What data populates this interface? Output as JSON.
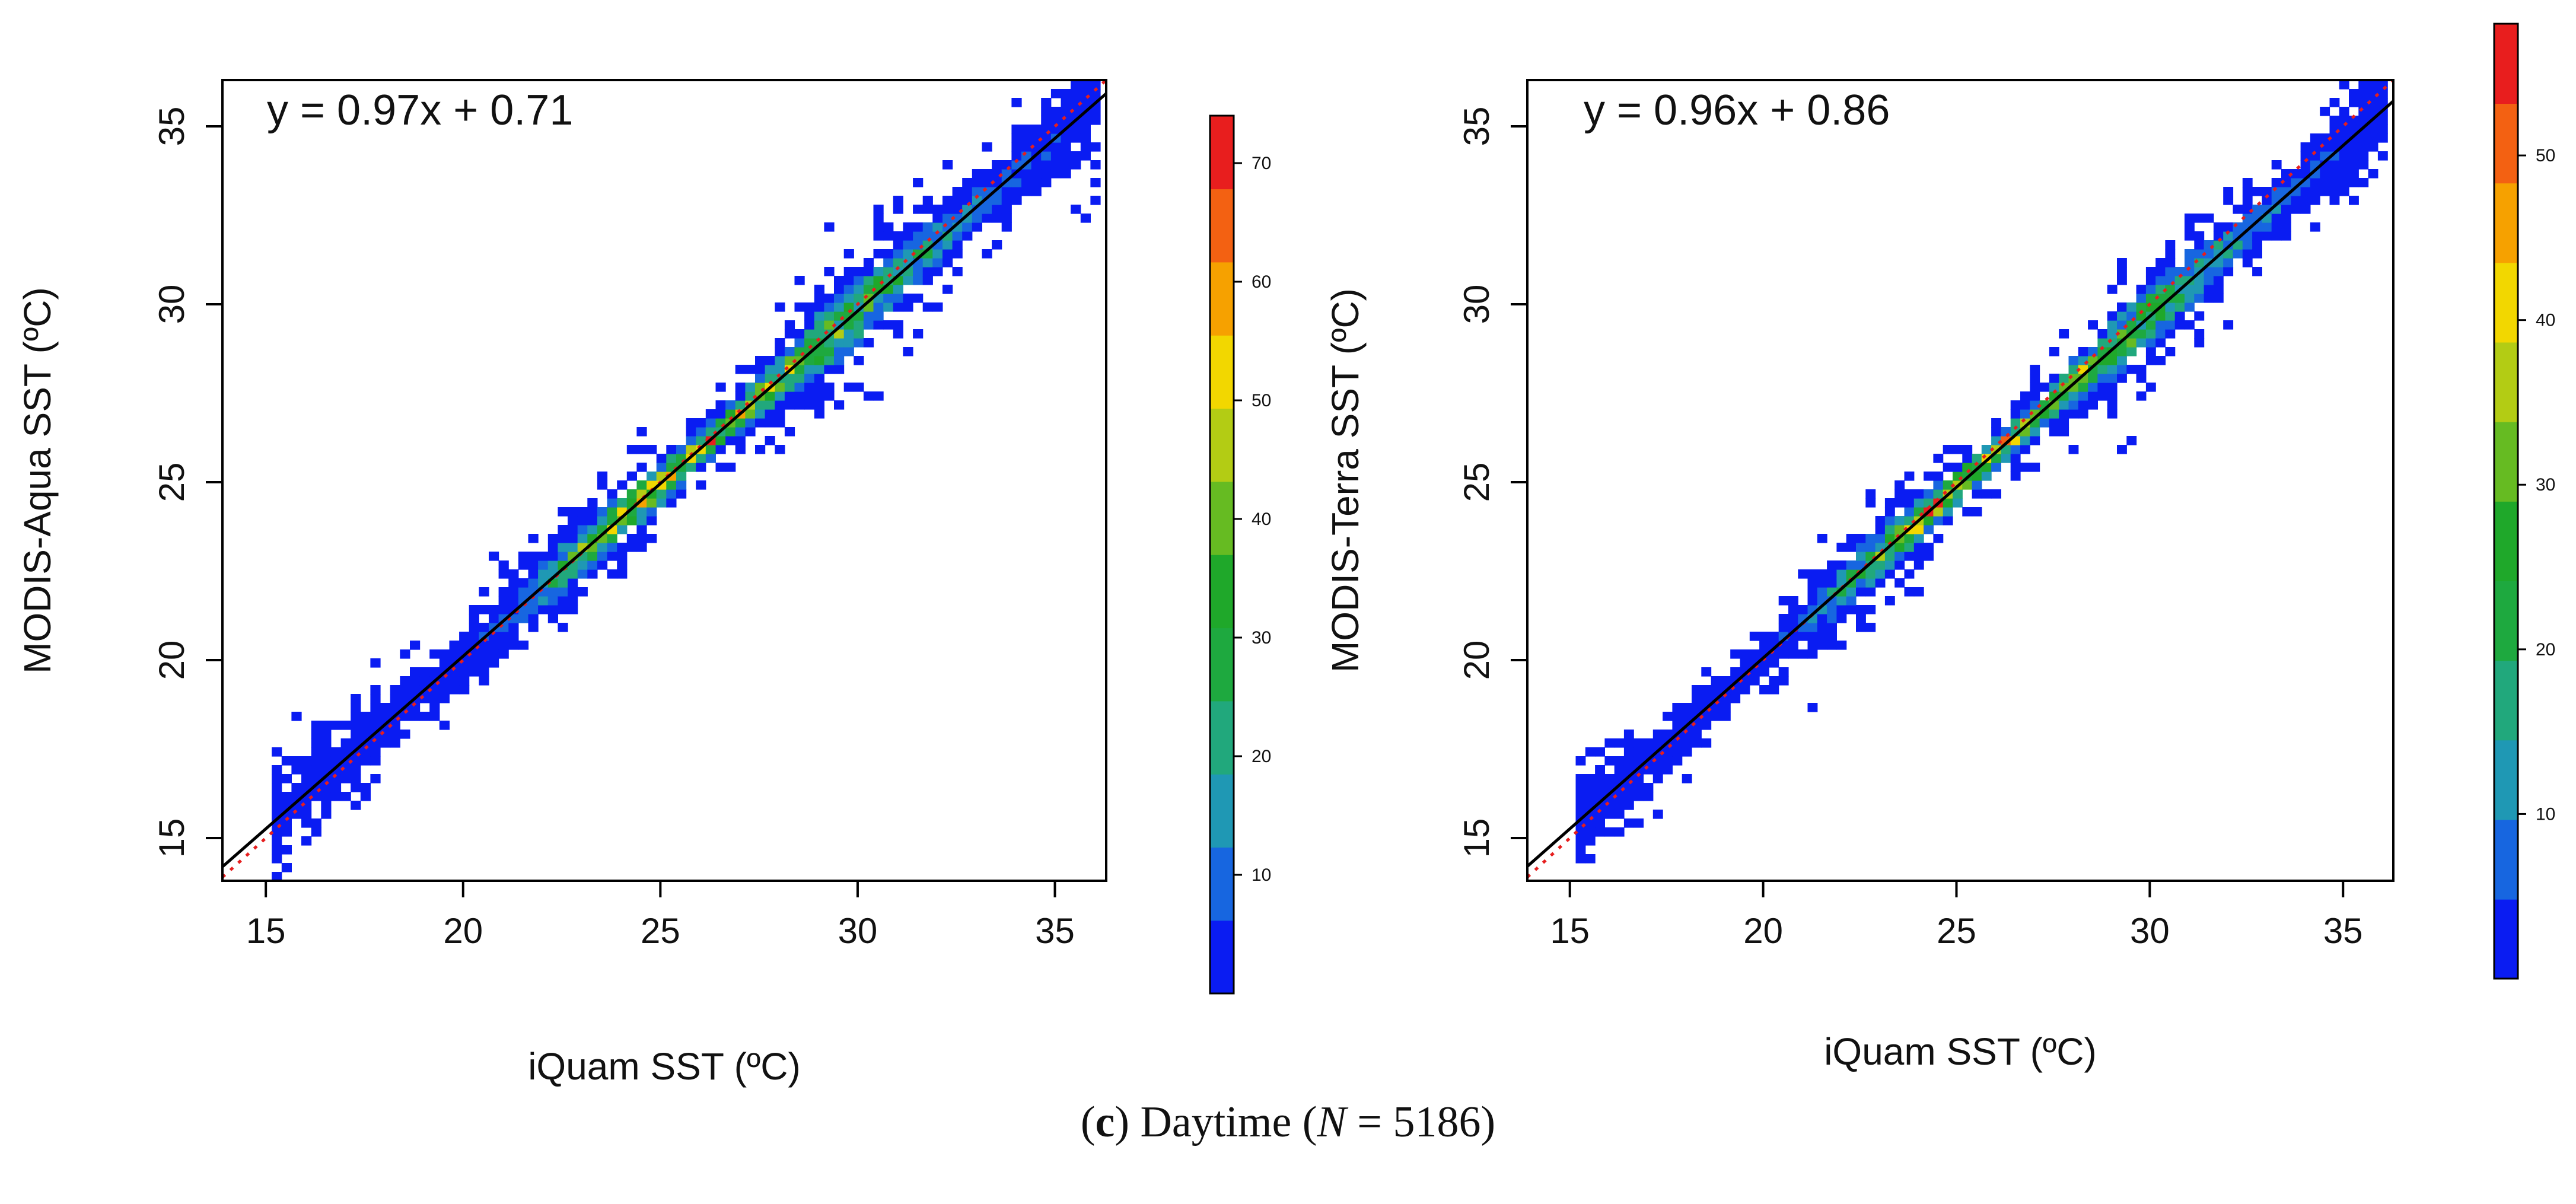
{
  "caption": {
    "open": "(",
    "letter": "c",
    "close": ")",
    "text": " Daytime (",
    "n_symbol": "N",
    "n_value": " = 5186)"
  },
  "colors": {
    "palette": [
      "#0a1cf2",
      "#1766e0",
      "#1f98b4",
      "#21a87c",
      "#1ea93f",
      "#1fa82a",
      "#66bb22",
      "#b3cc14",
      "#f2d700",
      "#f6a100",
      "#f36112",
      "#e81e1e"
    ],
    "fit_line": "#000000",
    "one_to_one": "#e61e1e"
  },
  "chart_data": [
    {
      "type": "heatmap",
      "title": "",
      "xlabel": "iQuam SST (ºC)",
      "ylabel": "MODIS-Aqua SST (ºC)",
      "xlim": [
        13.9,
        36.3
      ],
      "ylim": [
        13.8,
        36.3
      ],
      "xticks": [
        15,
        20,
        25,
        30,
        35
      ],
      "yticks": [
        15,
        20,
        25,
        30,
        35
      ],
      "equation": "y = 0.97x + 0.71",
      "fit": {
        "slope": 0.97,
        "intercept": 0.71
      },
      "one_to_one_line": true,
      "bin_size": 0.25,
      "colorbar": {
        "min": 0,
        "max": 74,
        "ticks": [
          10,
          20,
          30,
          40,
          50,
          60,
          70
        ]
      },
      "density": {
        "peak_count": 74,
        "spread_x": 1.7,
        "spread_perp": 0.33,
        "seed": 7
      }
    },
    {
      "type": "heatmap",
      "title": "",
      "xlabel": "iQuam SST (ºC)",
      "ylabel": "MODIS-Terra SST (ºC)",
      "xlim": [
        13.9,
        36.3
      ],
      "ylim": [
        13.8,
        36.3
      ],
      "xticks": [
        15,
        20,
        25,
        30,
        35
      ],
      "yticks": [
        15,
        20,
        25,
        30,
        35
      ],
      "equation": "y = 0.96x + 0.86",
      "fit": {
        "slope": 0.96,
        "intercept": 0.86
      },
      "one_to_one_line": true,
      "bin_size": 0.25,
      "colorbar": {
        "min": 0,
        "max": 58,
        "ticks": [
          10,
          20,
          30,
          40,
          50
        ]
      },
      "density": {
        "peak_count": 58,
        "spread_x": 1.7,
        "spread_perp": 0.3,
        "seed": 13
      }
    }
  ]
}
